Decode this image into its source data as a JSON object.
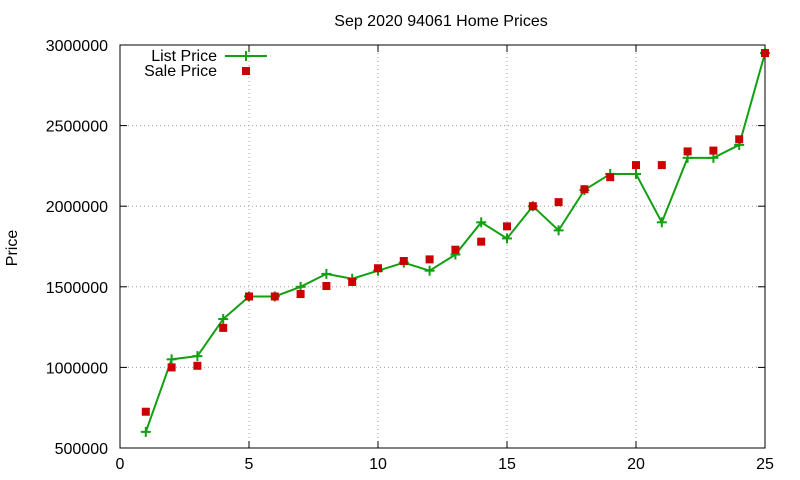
{
  "chart_data": {
    "type": "line",
    "title": "Sep 2020 94061 Home Prices",
    "xlabel": "",
    "ylabel": "Price",
    "xlim": [
      0,
      25
    ],
    "ylim": [
      500000,
      3000000
    ],
    "xticks": [
      0,
      5,
      10,
      15,
      20,
      25
    ],
    "yticks": [
      500000,
      1000000,
      1500000,
      2000000,
      2500000,
      3000000
    ],
    "grid": true,
    "legend_position": "top-left",
    "series": [
      {
        "name": "List Price",
        "style": "line+plus",
        "color": "#11a011",
        "x": [
          1,
          2,
          3,
          4,
          5,
          6,
          7,
          8,
          9,
          10,
          11,
          12,
          13,
          14,
          15,
          16,
          17,
          18,
          19,
          20,
          21,
          22,
          23,
          24,
          25
        ],
        "y": [
          600000,
          1050000,
          1070000,
          1300000,
          1440000,
          1440000,
          1500000,
          1580000,
          1550000,
          1600000,
          1650000,
          1600000,
          1700000,
          1900000,
          1800000,
          2000000,
          1850000,
          2100000,
          2200000,
          2200000,
          1900000,
          2300000,
          2300000,
          2380000,
          2950000
        ]
      },
      {
        "name": "Sale Price",
        "style": "square",
        "color": "#cc0000",
        "x": [
          1,
          2,
          3,
          4,
          5,
          6,
          7,
          8,
          9,
          10,
          11,
          12,
          13,
          14,
          15,
          16,
          17,
          18,
          19,
          20,
          21,
          22,
          23,
          24,
          25
        ],
        "y": [
          725000,
          1000000,
          1010000,
          1245000,
          1440000,
          1440000,
          1455000,
          1505000,
          1530000,
          1615000,
          1660000,
          1670000,
          1730000,
          1780000,
          1875000,
          2000000,
          2025000,
          2105000,
          2180000,
          2255000,
          2255000,
          2340000,
          2345000,
          2415000,
          2950000
        ]
      }
    ]
  }
}
